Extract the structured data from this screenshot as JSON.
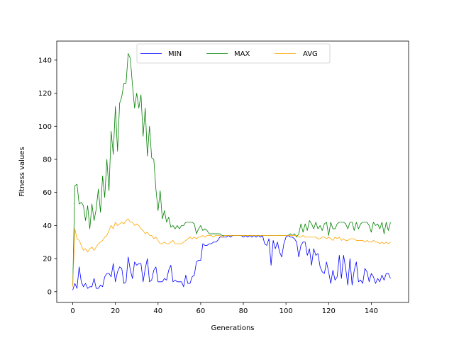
{
  "chart_data": {
    "type": "line",
    "title": "",
    "xlabel": "Generations",
    "ylabel": "Fitness values",
    "xlim": [
      -7.5,
      157.5
    ],
    "ylim": [
      -6.5,
      151.5
    ],
    "xticks": [
      0,
      20,
      40,
      60,
      80,
      100,
      120,
      140
    ],
    "yticks": [
      0,
      20,
      40,
      60,
      80,
      100,
      120,
      140
    ],
    "grid": false,
    "legend_position": "top-center",
    "series": [
      {
        "name": "MIN",
        "color": "#0000ff",
        "x": [
          0,
          1,
          2,
          3,
          4,
          5,
          6,
          7,
          8,
          9,
          10,
          11,
          12,
          13,
          14,
          15,
          16,
          17,
          18,
          19,
          20,
          21,
          22,
          23,
          24,
          25,
          26,
          27,
          28,
          29,
          30,
          31,
          32,
          33,
          34,
          35,
          36,
          37,
          38,
          39,
          40,
          41,
          42,
          43,
          44,
          45,
          46,
          47,
          48,
          49,
          50,
          51,
          52,
          53,
          54,
          55,
          56,
          57,
          58,
          59,
          60,
          61,
          62,
          63,
          64,
          65,
          66,
          67,
          68,
          69,
          70,
          71,
          72,
          73,
          74,
          75,
          76,
          77,
          78,
          79,
          80,
          81,
          82,
          83,
          84,
          85,
          86,
          87,
          88,
          89,
          90,
          91,
          92,
          93,
          94,
          95,
          96,
          97,
          98,
          99,
          100,
          101,
          102,
          103,
          104,
          105,
          106,
          107,
          108,
          109,
          110,
          111,
          112,
          113,
          114,
          115,
          116,
          117,
          118,
          119,
          120,
          121,
          122,
          123,
          124,
          125,
          126,
          127,
          128,
          129,
          130,
          131,
          132,
          133,
          134,
          135,
          136,
          137,
          138,
          139,
          140,
          141,
          142,
          143,
          144,
          145,
          146,
          147,
          148,
          149
        ],
        "values": [
          1,
          5,
          2,
          15,
          6,
          3,
          5,
          2,
          3,
          3,
          8,
          2,
          2,
          4,
          3,
          9,
          11,
          11,
          9,
          17,
          6,
          12,
          15,
          14,
          5,
          6,
          21,
          13,
          8,
          18,
          16,
          17,
          17,
          6,
          14,
          20,
          6,
          7,
          13,
          15,
          6,
          6,
          6,
          8,
          7,
          13,
          16,
          6,
          7,
          6,
          6,
          6,
          3,
          10,
          5,
          5,
          9,
          10,
          18,
          19,
          19,
          29,
          28,
          28,
          29,
          29,
          30,
          30,
          31,
          33,
          33,
          33,
          33,
          34,
          33,
          34,
          34,
          34,
          34,
          34,
          33,
          34,
          33,
          34,
          33,
          34,
          33,
          34,
          33,
          34,
          29,
          28,
          32,
          16,
          31,
          26,
          30,
          24,
          21,
          29,
          33,
          34,
          33,
          33,
          32,
          30,
          21,
          28,
          30,
          30,
          22,
          26,
          16,
          26,
          22,
          23,
          15,
          12,
          11,
          18,
          12,
          5,
          13,
          7,
          9,
          22,
          8,
          22,
          14,
          4,
          20,
          4,
          13,
          18,
          6,
          7,
          5,
          14,
          12,
          6,
          11,
          9,
          5,
          8,
          6,
          10,
          7,
          11,
          11,
          8
        ]
      },
      {
        "name": "MAX",
        "color": "#008000",
        "x": [
          0,
          1,
          2,
          3,
          4,
          5,
          6,
          7,
          8,
          9,
          10,
          11,
          12,
          13,
          14,
          15,
          16,
          17,
          18,
          19,
          20,
          21,
          22,
          23,
          24,
          25,
          26,
          27,
          28,
          29,
          30,
          31,
          32,
          33,
          34,
          35,
          36,
          37,
          38,
          39,
          40,
          41,
          42,
          43,
          44,
          45,
          46,
          47,
          48,
          49,
          50,
          51,
          52,
          53,
          54,
          55,
          56,
          57,
          58,
          59,
          60,
          61,
          62,
          63,
          64,
          65,
          66,
          67,
          68,
          69,
          70,
          71,
          72,
          73,
          74,
          75,
          76,
          77,
          78,
          79,
          80,
          81,
          82,
          83,
          84,
          85,
          86,
          87,
          88,
          89,
          90,
          91,
          92,
          93,
          94,
          95,
          96,
          97,
          98,
          99,
          100,
          101,
          102,
          103,
          104,
          105,
          106,
          107,
          108,
          109,
          110,
          111,
          112,
          113,
          114,
          115,
          116,
          117,
          118,
          119,
          120,
          121,
          122,
          123,
          124,
          125,
          126,
          127,
          128,
          129,
          130,
          131,
          132,
          133,
          134,
          135,
          136,
          137,
          138,
          139,
          140,
          141,
          142,
          143,
          144,
          145,
          146,
          147,
          148,
          149
        ],
        "values": [
          4,
          64,
          65,
          53,
          54,
          52,
          43,
          52,
          38,
          53,
          43,
          50,
          62,
          48,
          70,
          57,
          80,
          61,
          97,
          83,
          112,
          85,
          114,
          118,
          126,
          126,
          144,
          141,
          125,
          111,
          120,
          111,
          119,
          94,
          111,
          82,
          100,
          81,
          80,
          62,
          49,
          61,
          44,
          49,
          42,
          45,
          39,
          40,
          38,
          40,
          38,
          40,
          40,
          42,
          42,
          42,
          42,
          41,
          35,
          38,
          40,
          37,
          38,
          37,
          35,
          35,
          35,
          35,
          35,
          35,
          34,
          34,
          34,
          34,
          34,
          34,
          34,
          34,
          34,
          34,
          34,
          34,
          34,
          34,
          34,
          34,
          34,
          34,
          34,
          34,
          34,
          34,
          34,
          34,
          34,
          34,
          34,
          34,
          34,
          34,
          34,
          34,
          35,
          34,
          35,
          33,
          35,
          41,
          36,
          41,
          37,
          43,
          41,
          38,
          42,
          38,
          40,
          37,
          41,
          42,
          34,
          42,
          38,
          38,
          41,
          42,
          42,
          42,
          41,
          38,
          42,
          42,
          37,
          42,
          38,
          41,
          42,
          42,
          42,
          40,
          36,
          42,
          40,
          41,
          38,
          42,
          35,
          42,
          37,
          42
        ]
      },
      {
        "name": "AVG",
        "color": "#ffa500",
        "x": [
          0,
          1,
          2,
          3,
          4,
          5,
          6,
          7,
          8,
          9,
          10,
          11,
          12,
          13,
          14,
          15,
          16,
          17,
          18,
          19,
          20,
          21,
          22,
          23,
          24,
          25,
          26,
          27,
          28,
          29,
          30,
          31,
          32,
          33,
          34,
          35,
          36,
          37,
          38,
          39,
          40,
          41,
          42,
          43,
          44,
          45,
          46,
          47,
          48,
          49,
          50,
          51,
          52,
          53,
          54,
          55,
          56,
          57,
          58,
          59,
          60,
          61,
          62,
          63,
          64,
          65,
          66,
          67,
          68,
          69,
          70,
          71,
          72,
          73,
          74,
          75,
          76,
          77,
          78,
          79,
          80,
          81,
          82,
          83,
          84,
          85,
          86,
          87,
          88,
          89,
          90,
          91,
          92,
          93,
          94,
          95,
          96,
          97,
          98,
          99,
          100,
          101,
          102,
          103,
          104,
          105,
          106,
          107,
          108,
          109,
          110,
          111,
          112,
          113,
          114,
          115,
          116,
          117,
          118,
          119,
          120,
          121,
          122,
          123,
          124,
          125,
          126,
          127,
          128,
          129,
          130,
          131,
          132,
          133,
          134,
          135,
          136,
          137,
          138,
          139,
          140,
          141,
          142,
          143,
          144,
          145,
          146,
          147,
          148,
          149
        ],
        "values": [
          3,
          38,
          32,
          31,
          28,
          25,
          26,
          24,
          26,
          27,
          25,
          27,
          29,
          30,
          31,
          33,
          34,
          37,
          40,
          38,
          42,
          40,
          41,
          42,
          41,
          43,
          44,
          42,
          42,
          40,
          41,
          40,
          38,
          37,
          35,
          36,
          34,
          34,
          32,
          33,
          31,
          29,
          29,
          30,
          29,
          29,
          30,
          31,
          29,
          29,
          29,
          29,
          30,
          31,
          32,
          33,
          32,
          33,
          32,
          33,
          33,
          34,
          33,
          34,
          34,
          34,
          33,
          34,
          34,
          34,
          33,
          34,
          34,
          34,
          34,
          34,
          34,
          34,
          34,
          34,
          34,
          34,
          34,
          34,
          34,
          34,
          34,
          34,
          34,
          34,
          34,
          34,
          34,
          34,
          34,
          34,
          34,
          34,
          34,
          34,
          34,
          34,
          34,
          34,
          34,
          34,
          33,
          33,
          34,
          33,
          33,
          33,
          33,
          33,
          33,
          32,
          32,
          33,
          33,
          32,
          33,
          32,
          31,
          33,
          32,
          33,
          31,
          32,
          31,
          31,
          32,
          32,
          32,
          31,
          31,
          31,
          31,
          30,
          31,
          30,
          30,
          31,
          30,
          30,
          29,
          30,
          29,
          30,
          29,
          30
        ]
      }
    ]
  }
}
